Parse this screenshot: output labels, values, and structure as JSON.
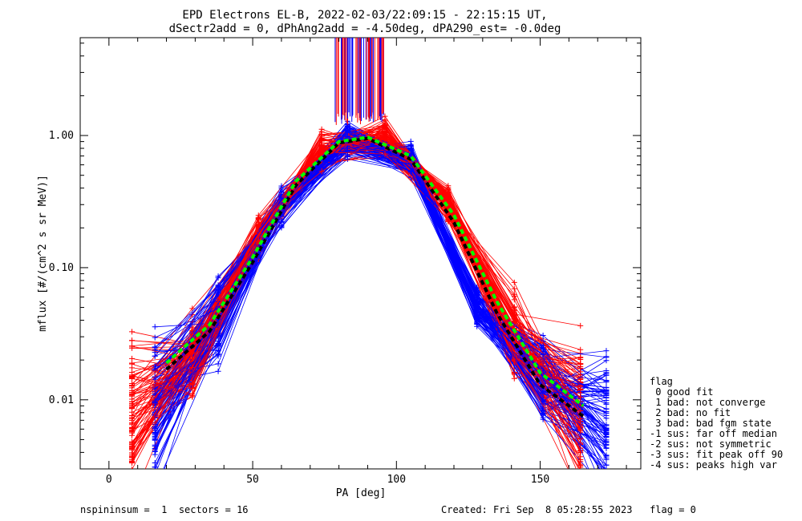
{
  "chart_data": {
    "type": "line",
    "title": "EPD Electrons EL-B, 2022-02-03/22:09:15 - 22:15:15 UT,",
    "subtitle": "dSectr2add = 0, dPhAng2add = -4.50deg, dPA290_est=  -0.0deg",
    "xlabel": "PA [deg]",
    "ylabel": "mflux [#/(cm^2 s sr MeV)]",
    "xlim": [
      -10,
      185
    ],
    "ylim": [
      0.003,
      5.5
    ],
    "yscale": "log",
    "x_ticks": [
      0,
      50,
      100,
      150
    ],
    "y_ticks": [
      0.01,
      0.1,
      1.0
    ],
    "x_tick_labels": [
      "0",
      "50",
      "100",
      "150"
    ],
    "y_tick_labels": [
      "0.01",
      "0.10",
      "1.00"
    ],
    "grid": false,
    "series": [
      {
        "color": "#ff0000",
        "style": "spin-traces",
        "x": [
          8,
          29,
          52,
          74,
          96,
          118,
          141,
          164
        ],
        "y": [
          0.008,
          0.02,
          0.17,
          0.75,
          0.95,
          0.3,
          0.03,
          0.008
        ]
      },
      {
        "color": "#0000ff",
        "style": "spin-traces",
        "x": [
          16,
          38,
          60,
          83,
          105,
          128,
          151,
          173
        ],
        "y": [
          0.009,
          0.04,
          0.3,
          0.95,
          0.65,
          0.05,
          0.014,
          0.007
        ]
      },
      {
        "color": "#000000",
        "style": "dashed-fit",
        "x": [
          20,
          35,
          50,
          65,
          80,
          90,
          105,
          120,
          135,
          150,
          165
        ],
        "y": [
          0.017,
          0.033,
          0.11,
          0.42,
          0.88,
          0.95,
          0.66,
          0.22,
          0.045,
          0.013,
          0.0075
        ]
      },
      {
        "color": "#00ff00",
        "style": "dashed-fit",
        "x": [
          20,
          35,
          50,
          65,
          80,
          90,
          105,
          120,
          135,
          150,
          165
        ],
        "y": [
          0.019,
          0.037,
          0.12,
          0.45,
          0.9,
          0.97,
          0.7,
          0.25,
          0.055,
          0.016,
          0.009
        ]
      }
    ]
  },
  "legend": {
    "header": "flag",
    "items": [
      " 0 good fit",
      " 1 bad: not converge",
      " 2 bad: no fit",
      " 3 bad: bad fgm state",
      "-1 sus: far off median",
      "-2 sus: not symmetric",
      "-3 sus: fit peak off 90",
      "-4 sus: peaks high var"
    ]
  },
  "footer": {
    "left": "nspininsum =  1  sectors = 16",
    "right": "Created: Fri Sep  8 05:28:55 2023   flag = 0"
  }
}
